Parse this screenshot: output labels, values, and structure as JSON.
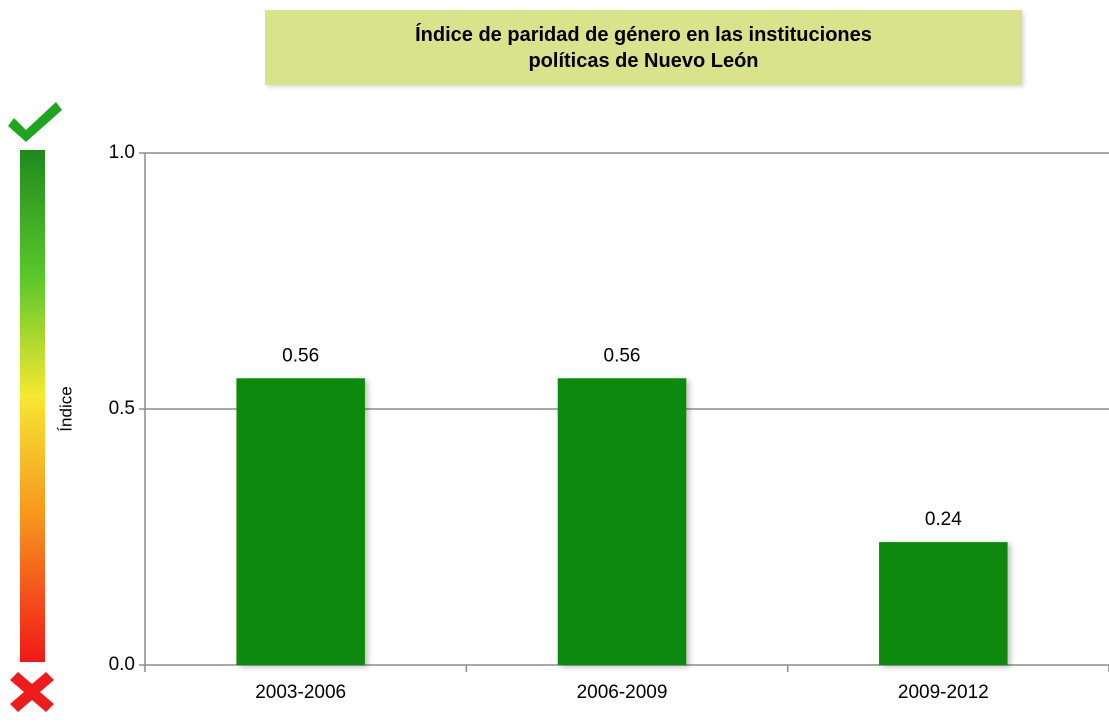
{
  "chart_data": {
    "type": "bar",
    "title": "Índice de paridad de género en las instituciones políticas de Nuevo León",
    "y_label": "Índice",
    "categories": [
      "2003-2006",
      "2006-2009",
      "2009-2012"
    ],
    "values": [
      0.56,
      0.56,
      0.24
    ],
    "color": "#078a0a",
    "ylim": [
      0,
      1
    ],
    "yticks": [
      {
        "value": 0,
        "label": "0.0"
      },
      {
        "value": 0.5,
        "label": "0.5"
      },
      {
        "value": 1,
        "label": "1.0"
      }
    ],
    "grid": true
  }
}
